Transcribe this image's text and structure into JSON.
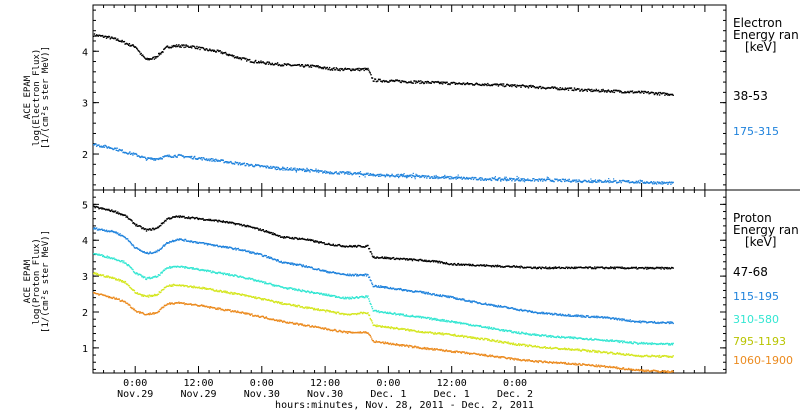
{
  "chart_data": [
    {
      "type": "scatter",
      "ylabel": "ACE EPAM",
      "ylabel2": "log(Electron Flux)",
      "ylabel3": "[1/(cm²s ster MeV)]",
      "xlim_hours": [
        -8,
        112
      ],
      "ylim": [
        1.3,
        4.9
      ],
      "yticks": [
        2,
        3,
        4
      ],
      "legend": {
        "title1": "Electron",
        "title2": "Energy ran",
        "unit": "[keV]"
      },
      "series": [
        {
          "name": "38-53",
          "color": "#000000",
          "points": [
            [
              -8,
              4.33
            ],
            [
              -5,
              4.28
            ],
            [
              -3,
              4.22
            ],
            [
              -1.5,
              4.15
            ],
            [
              0,
              4.1
            ],
            [
              1,
              3.95
            ],
            [
              2,
              3.85
            ],
            [
              3.5,
              3.88
            ],
            [
              5,
              4.0
            ],
            [
              6,
              4.1
            ],
            [
              8,
              4.12
            ],
            [
              11,
              4.1
            ],
            [
              13,
              4.05
            ],
            [
              16,
              4.0
            ],
            [
              19,
              3.9
            ],
            [
              22,
              3.82
            ],
            [
              25,
              3.78
            ],
            [
              28,
              3.75
            ],
            [
              31,
              3.73
            ],
            [
              34,
              3.72
            ],
            [
              36,
              3.68
            ],
            [
              39,
              3.66
            ],
            [
              42,
              3.66
            ],
            [
              44,
              3.66
            ],
            [
              45,
              3.45
            ],
            [
              47,
              3.44
            ],
            [
              52,
              3.42
            ],
            [
              57,
              3.4
            ],
            [
              62,
              3.38
            ],
            [
              66,
              3.37
            ],
            [
              70,
              3.35
            ],
            [
              74,
              3.33
            ],
            [
              78,
              3.3
            ],
            [
              82,
              3.28
            ],
            [
              86,
              3.25
            ],
            [
              90,
              3.24
            ],
            [
              94,
              3.22
            ],
            [
              98,
              3.2
            ],
            [
              100,
              3.18
            ],
            [
              102,
              3.18
            ]
          ]
        },
        {
          "name": "175-315",
          "color": "#1e82dc",
          "points": [
            [
              -8,
              2.2
            ],
            [
              -4,
              2.12
            ],
            [
              -2,
              2.05
            ],
            [
              0,
              2.0
            ],
            [
              2,
              1.92
            ],
            [
              4,
              1.92
            ],
            [
              6,
              1.97
            ],
            [
              8,
              1.98
            ],
            [
              12,
              1.93
            ],
            [
              16,
              1.88
            ],
            [
              20,
              1.82
            ],
            [
              24,
              1.77
            ],
            [
              28,
              1.73
            ],
            [
              32,
              1.7
            ],
            [
              36,
              1.66
            ],
            [
              40,
              1.64
            ],
            [
              44,
              1.62
            ],
            [
              46,
              1.6
            ],
            [
              50,
              1.59
            ],
            [
              55,
              1.57
            ],
            [
              60,
              1.55
            ],
            [
              65,
              1.53
            ],
            [
              70,
              1.52
            ],
            [
              75,
              1.51
            ],
            [
              80,
              1.5
            ],
            [
              85,
              1.49
            ],
            [
              90,
              1.48
            ],
            [
              95,
              1.47
            ],
            [
              100,
              1.45
            ],
            [
              102,
              1.44
            ]
          ]
        }
      ]
    },
    {
      "type": "scatter",
      "ylabel": "ACE EPAM",
      "ylabel2": "log(Proton Flux)",
      "ylabel3": "[1/(cm²s ster MeV)]",
      "xlim_hours": [
        -8,
        112
      ],
      "ylim": [
        0.3,
        5.4
      ],
      "yticks": [
        1,
        2,
        3,
        4,
        5
      ],
      "xlabel": "hours:minutes, Nov. 28, 2011 - Dec. 2, 2011",
      "xticks": [
        {
          "h": 0,
          "time": "0:00",
          "date": "Nov.29"
        },
        {
          "h": 12,
          "time": "12:00",
          "date": "Nov.29"
        },
        {
          "h": 24,
          "time": "0:00",
          "date": "Nov.30"
        },
        {
          "h": 36,
          "time": "12:00",
          "date": "Nov.30"
        },
        {
          "h": 48,
          "time": "0:00",
          "date": "Dec. 1"
        },
        {
          "h": 60,
          "time": "12:00",
          "date": "Dec. 1"
        },
        {
          "h": 72,
          "time": "0:00",
          "date": "Dec. 2"
        }
      ],
      "legend": {
        "title1": "Proton",
        "title2": "Energy ran",
        "unit": "[keV]"
      },
      "series": [
        {
          "name": "47-68",
          "color": "#000000",
          "points": [
            [
              -8,
              4.95
            ],
            [
              -4,
              4.82
            ],
            [
              -2,
              4.7
            ],
            [
              0,
              4.45
            ],
            [
              2,
              4.3
            ],
            [
              4,
              4.35
            ],
            [
              6,
              4.62
            ],
            [
              8,
              4.68
            ],
            [
              12,
              4.62
            ],
            [
              16,
              4.55
            ],
            [
              20,
              4.45
            ],
            [
              24,
              4.3
            ],
            [
              28,
              4.1
            ],
            [
              32,
              4.05
            ],
            [
              36,
              3.92
            ],
            [
              40,
              3.85
            ],
            [
              44,
              3.85
            ],
            [
              45,
              3.55
            ],
            [
              50,
              3.5
            ],
            [
              55,
              3.45
            ],
            [
              58,
              3.4
            ],
            [
              60,
              3.35
            ],
            [
              64,
              3.33
            ],
            [
              68,
              3.3
            ],
            [
              72,
              3.28
            ],
            [
              76,
              3.25
            ],
            [
              80,
              3.25
            ],
            [
              85,
              3.25
            ],
            [
              90,
              3.25
            ],
            [
              95,
              3.24
            ],
            [
              100,
              3.24
            ],
            [
              102,
              3.24
            ]
          ]
        },
        {
          "name": "115-195",
          "color": "#1e82dc",
          "points": [
            [
              -8,
              4.35
            ],
            [
              -4,
              4.25
            ],
            [
              -2,
              4.1
            ],
            [
              0,
              3.8
            ],
            [
              2,
              3.65
            ],
            [
              4,
              3.7
            ],
            [
              6,
              3.95
            ],
            [
              8,
              4.05
            ],
            [
              12,
              3.95
            ],
            [
              16,
              3.85
            ],
            [
              20,
              3.75
            ],
            [
              24,
              3.6
            ],
            [
              28,
              3.4
            ],
            [
              32,
              3.3
            ],
            [
              36,
              3.15
            ],
            [
              40,
              3.05
            ],
            [
              44,
              3.05
            ],
            [
              45,
              2.75
            ],
            [
              50,
              2.65
            ],
            [
              55,
              2.55
            ],
            [
              60,
              2.42
            ],
            [
              64,
              2.3
            ],
            [
              68,
              2.2
            ],
            [
              72,
              2.1
            ],
            [
              76,
              2.0
            ],
            [
              80,
              1.95
            ],
            [
              85,
              1.9
            ],
            [
              90,
              1.85
            ],
            [
              95,
              1.75
            ],
            [
              100,
              1.72
            ],
            [
              102,
              1.72
            ]
          ]
        },
        {
          "name": "310-580",
          "color": "#33e6d2",
          "points": [
            [
              -8,
              3.65
            ],
            [
              -4,
              3.5
            ],
            [
              -2,
              3.4
            ],
            [
              0,
              3.1
            ],
            [
              2,
              2.95
            ],
            [
              4,
              3.0
            ],
            [
              6,
              3.25
            ],
            [
              8,
              3.3
            ],
            [
              12,
              3.2
            ],
            [
              16,
              3.1
            ],
            [
              20,
              3.0
            ],
            [
              24,
              2.85
            ],
            [
              28,
              2.7
            ],
            [
              32,
              2.6
            ],
            [
              36,
              2.5
            ],
            [
              40,
              2.4
            ],
            [
              44,
              2.45
            ],
            [
              45,
              2.05
            ],
            [
              50,
              1.95
            ],
            [
              55,
              1.85
            ],
            [
              60,
              1.75
            ],
            [
              64,
              1.65
            ],
            [
              68,
              1.55
            ],
            [
              72,
              1.45
            ],
            [
              76,
              1.38
            ],
            [
              80,
              1.32
            ],
            [
              85,
              1.28
            ],
            [
              90,
              1.22
            ],
            [
              95,
              1.15
            ],
            [
              100,
              1.12
            ],
            [
              102,
              1.12
            ]
          ]
        },
        {
          "name": "795-1193",
          "color": "#d4e61e",
          "points": [
            [
              -8,
              3.1
            ],
            [
              -4,
              2.95
            ],
            [
              -2,
              2.85
            ],
            [
              0,
              2.55
            ],
            [
              2,
              2.45
            ],
            [
              4,
              2.5
            ],
            [
              6,
              2.75
            ],
            [
              8,
              2.78
            ],
            [
              12,
              2.7
            ],
            [
              16,
              2.6
            ],
            [
              20,
              2.5
            ],
            [
              24,
              2.38
            ],
            [
              28,
              2.25
            ],
            [
              32,
              2.15
            ],
            [
              36,
              2.05
            ],
            [
              40,
              1.95
            ],
            [
              44,
              2.0
            ],
            [
              45,
              1.65
            ],
            [
              50,
              1.55
            ],
            [
              55,
              1.45
            ],
            [
              60,
              1.38
            ],
            [
              64,
              1.3
            ],
            [
              68,
              1.22
            ],
            [
              72,
              1.12
            ],
            [
              76,
              1.05
            ],
            [
              80,
              1.0
            ],
            [
              85,
              0.95
            ],
            [
              90,
              0.88
            ],
            [
              95,
              0.8
            ],
            [
              100,
              0.78
            ],
            [
              102,
              0.78
            ]
          ]
        },
        {
          "name": "1060-1900",
          "color": "#eb8a1e",
          "points": [
            [
              -8,
              2.55
            ],
            [
              -4,
              2.4
            ],
            [
              -2,
              2.3
            ],
            [
              0,
              2.05
            ],
            [
              2,
              1.95
            ],
            [
              4,
              2.0
            ],
            [
              6,
              2.25
            ],
            [
              8,
              2.28
            ],
            [
              12,
              2.2
            ],
            [
              16,
              2.1
            ],
            [
              20,
              2.0
            ],
            [
              24,
              1.88
            ],
            [
              28,
              1.75
            ],
            [
              32,
              1.65
            ],
            [
              36,
              1.55
            ],
            [
              40,
              1.45
            ],
            [
              44,
              1.45
            ],
            [
              45,
              1.2
            ],
            [
              50,
              1.1
            ],
            [
              55,
              1.0
            ],
            [
              60,
              0.92
            ],
            [
              64,
              0.85
            ],
            [
              68,
              0.78
            ],
            [
              72,
              0.7
            ],
            [
              76,
              0.64
            ],
            [
              80,
              0.6
            ],
            [
              85,
              0.55
            ],
            [
              90,
              0.48
            ],
            [
              95,
              0.4
            ],
            [
              100,
              0.36
            ],
            [
              102,
              0.36
            ]
          ]
        }
      ]
    }
  ]
}
